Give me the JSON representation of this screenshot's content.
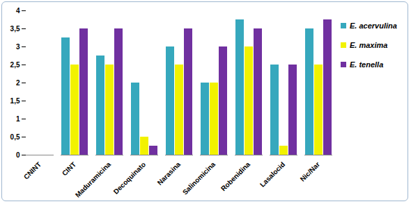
{
  "chart_data": {
    "type": "bar",
    "categories": [
      "CNINT",
      "CINT",
      "Maduramicina",
      "Decoquinato",
      "Narasina",
      "Salinomicina",
      "Robenidina",
      "Lasalocid",
      "Nic/Nar"
    ],
    "series": [
      {
        "name": "E. acervulina",
        "color": "#36a8bd",
        "values": [
          0,
          3.25,
          2.75,
          2,
          3,
          2,
          3.75,
          2.5,
          3.5
        ]
      },
      {
        "name": "E. maxima",
        "color": "#f2f200",
        "values": [
          0,
          2.5,
          2.5,
          0.5,
          2.5,
          2,
          3,
          0.25,
          2.5
        ]
      },
      {
        "name": "E. tenella",
        "color": "#7030a0",
        "values": [
          0,
          3.5,
          3.5,
          0.25,
          3.5,
          3,
          3.5,
          2.5,
          3.75
        ]
      }
    ],
    "ylim": [
      0,
      4
    ],
    "yticks": [
      0,
      {
        "value": 0.5,
        "label": "0,5"
      },
      1,
      {
        "value": 1.5,
        "label": "1,5"
      },
      2,
      {
        "value": 2.5,
        "label": "2,5"
      },
      3,
      {
        "value": 3.5,
        "label": "3,5"
      },
      4
    ],
    "grid": false,
    "legend": "right"
  }
}
